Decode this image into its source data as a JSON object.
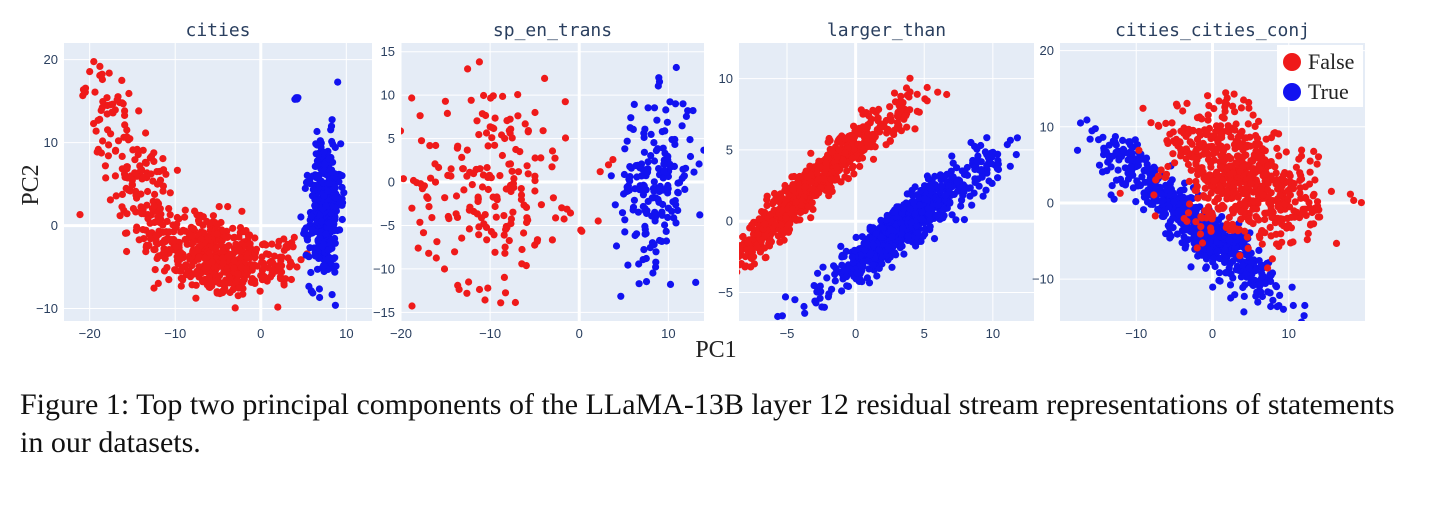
{
  "figure": {
    "xlabel": "PC1",
    "ylabel": "PC2",
    "legend": {
      "placement": "top-right",
      "entries": [
        {
          "label": "False",
          "color": "#ef1a1a"
        },
        {
          "label": "True",
          "color": "#1212f0"
        }
      ]
    },
    "plot_bg": "#e5ecf6",
    "grid_color": "#ffffff"
  },
  "chart_data": [
    {
      "type": "scatter",
      "title": "cities",
      "xlim": [
        -23,
        13
      ],
      "ylim": [
        -11.5,
        22
      ],
      "xticks": [
        -20,
        -10,
        0,
        10
      ],
      "yticks": [
        -10,
        0,
        10,
        20
      ],
      "series": [
        {
          "name": "False",
          "color": "#ef1a1a",
          "clusters": [
            {
              "n": 300,
              "x0": -7,
              "y0": -3,
              "sx": 3.5,
              "sy": 2.6,
              "rho": -0.3
            },
            {
              "n": 120,
              "x0": -14,
              "y0": 5,
              "sx": 2.2,
              "sy": 4.2,
              "rho": -0.6
            },
            {
              "n": 40,
              "x0": -18,
              "y0": 14,
              "sx": 1.2,
              "sy": 3.0,
              "rho": -0.5
            },
            {
              "n": 160,
              "x0": -3,
              "y0": -5,
              "sx": 2.2,
              "sy": 1.8,
              "rho": 0.1
            },
            {
              "n": 40,
              "x0": 2.5,
              "y0": -4,
              "sx": 1.0,
              "sy": 1.5,
              "rho": 0.2
            }
          ]
        },
        {
          "name": "True",
          "color": "#1212f0",
          "clusters": [
            {
              "n": 420,
              "x0": 7.5,
              "y0": 2,
              "sx": 0.9,
              "sy": 4.2,
              "rho": 0.15
            },
            {
              "n": 4,
              "x0": 4.2,
              "y0": 15.3,
              "sx": 0.2,
              "sy": 0.1,
              "rho": 0
            }
          ]
        }
      ]
    },
    {
      "type": "scatter",
      "title": "sp_en_trans",
      "xlim": [
        -20,
        14
      ],
      "ylim": [
        -16,
        16
      ],
      "xticks": [
        -20,
        -10,
        0,
        10
      ],
      "yticks": [
        -15,
        -10,
        -5,
        0,
        5,
        10,
        15
      ],
      "series": [
        {
          "name": "False",
          "color": "#ef1a1a",
          "clusters": [
            {
              "n": 190,
              "x0": -10,
              "y0": 0,
              "sx": 4.3,
              "sy": 6.0,
              "rho": 0
            },
            {
              "n": 8,
              "x0": 0,
              "y0": -4.5,
              "sx": 2.0,
              "sy": 1.3,
              "rho": 0
            },
            {
              "n": 2,
              "x0": 2.8,
              "y0": 6,
              "sx": 0.5,
              "sy": 4,
              "rho": 0
            }
          ]
        },
        {
          "name": "True",
          "color": "#1212f0",
          "clusters": [
            {
              "n": 190,
              "x0": 8.5,
              "y0": 0,
              "sx": 2.2,
              "sy": 4.8,
              "rho": 0.2
            }
          ]
        }
      ]
    },
    {
      "type": "scatter",
      "title": "larger_than",
      "xlim": [
        -8.5,
        13
      ],
      "ylim": [
        -7,
        12.5
      ],
      "xticks": [
        -5,
        0,
        5,
        10
      ],
      "yticks": [
        -5,
        0,
        5,
        10
      ],
      "series": [
        {
          "name": "False",
          "color": "#ef1a1a",
          "clusters": [
            {
              "n": 720,
              "x0": -3.5,
              "y0": 2.3,
              "sx": 2.6,
              "sy": 2.5,
              "rho": 0.95
            },
            {
              "n": 60,
              "x0": 3,
              "y0": 7,
              "sx": 1.4,
              "sy": 1.2,
              "rho": 0.8
            }
          ]
        },
        {
          "name": "True",
          "color": "#1212f0",
          "clusters": [
            {
              "n": 720,
              "x0": 3.3,
              "y0": -0.5,
              "sx": 2.8,
              "sy": 2.2,
              "rho": 0.93
            },
            {
              "n": 40,
              "x0": 9,
              "y0": 3,
              "sx": 1.5,
              "sy": 1.2,
              "rho": 0.7
            }
          ]
        }
      ]
    },
    {
      "type": "scatter",
      "title": "cities_cities_conj",
      "xlim": [
        -20,
        20
      ],
      "ylim": [
        -15.5,
        21
      ],
      "xticks": [
        -10,
        0,
        10
      ],
      "yticks": [
        -10,
        0,
        10,
        20
      ],
      "series": [
        {
          "name": "True",
          "color": "#1212f0",
          "clusters": [
            {
              "n": 500,
              "x0": -1,
              "y0": -4,
              "sx": 5.0,
              "sy": 4.2,
              "rho": -0.9
            },
            {
              "n": 80,
              "x0": -10,
              "y0": 5,
              "sx": 3.0,
              "sy": 2.5,
              "rho": -0.85
            }
          ]
        },
        {
          "name": "False",
          "color": "#ef1a1a",
          "clusters": [
            {
              "n": 560,
              "x0": 4.5,
              "y0": 2.5,
              "sx": 4.6,
              "sy": 3.8,
              "rho": -0.3
            },
            {
              "n": 70,
              "x0": -1,
              "y0": 10,
              "sx": 4.0,
              "sy": 2.5,
              "rho": 0.2
            }
          ]
        }
      ]
    }
  ],
  "caption": "Figure 1: Top two principal components of the LLaMA-13B layer 12 residual stream representations of statements in our datasets."
}
